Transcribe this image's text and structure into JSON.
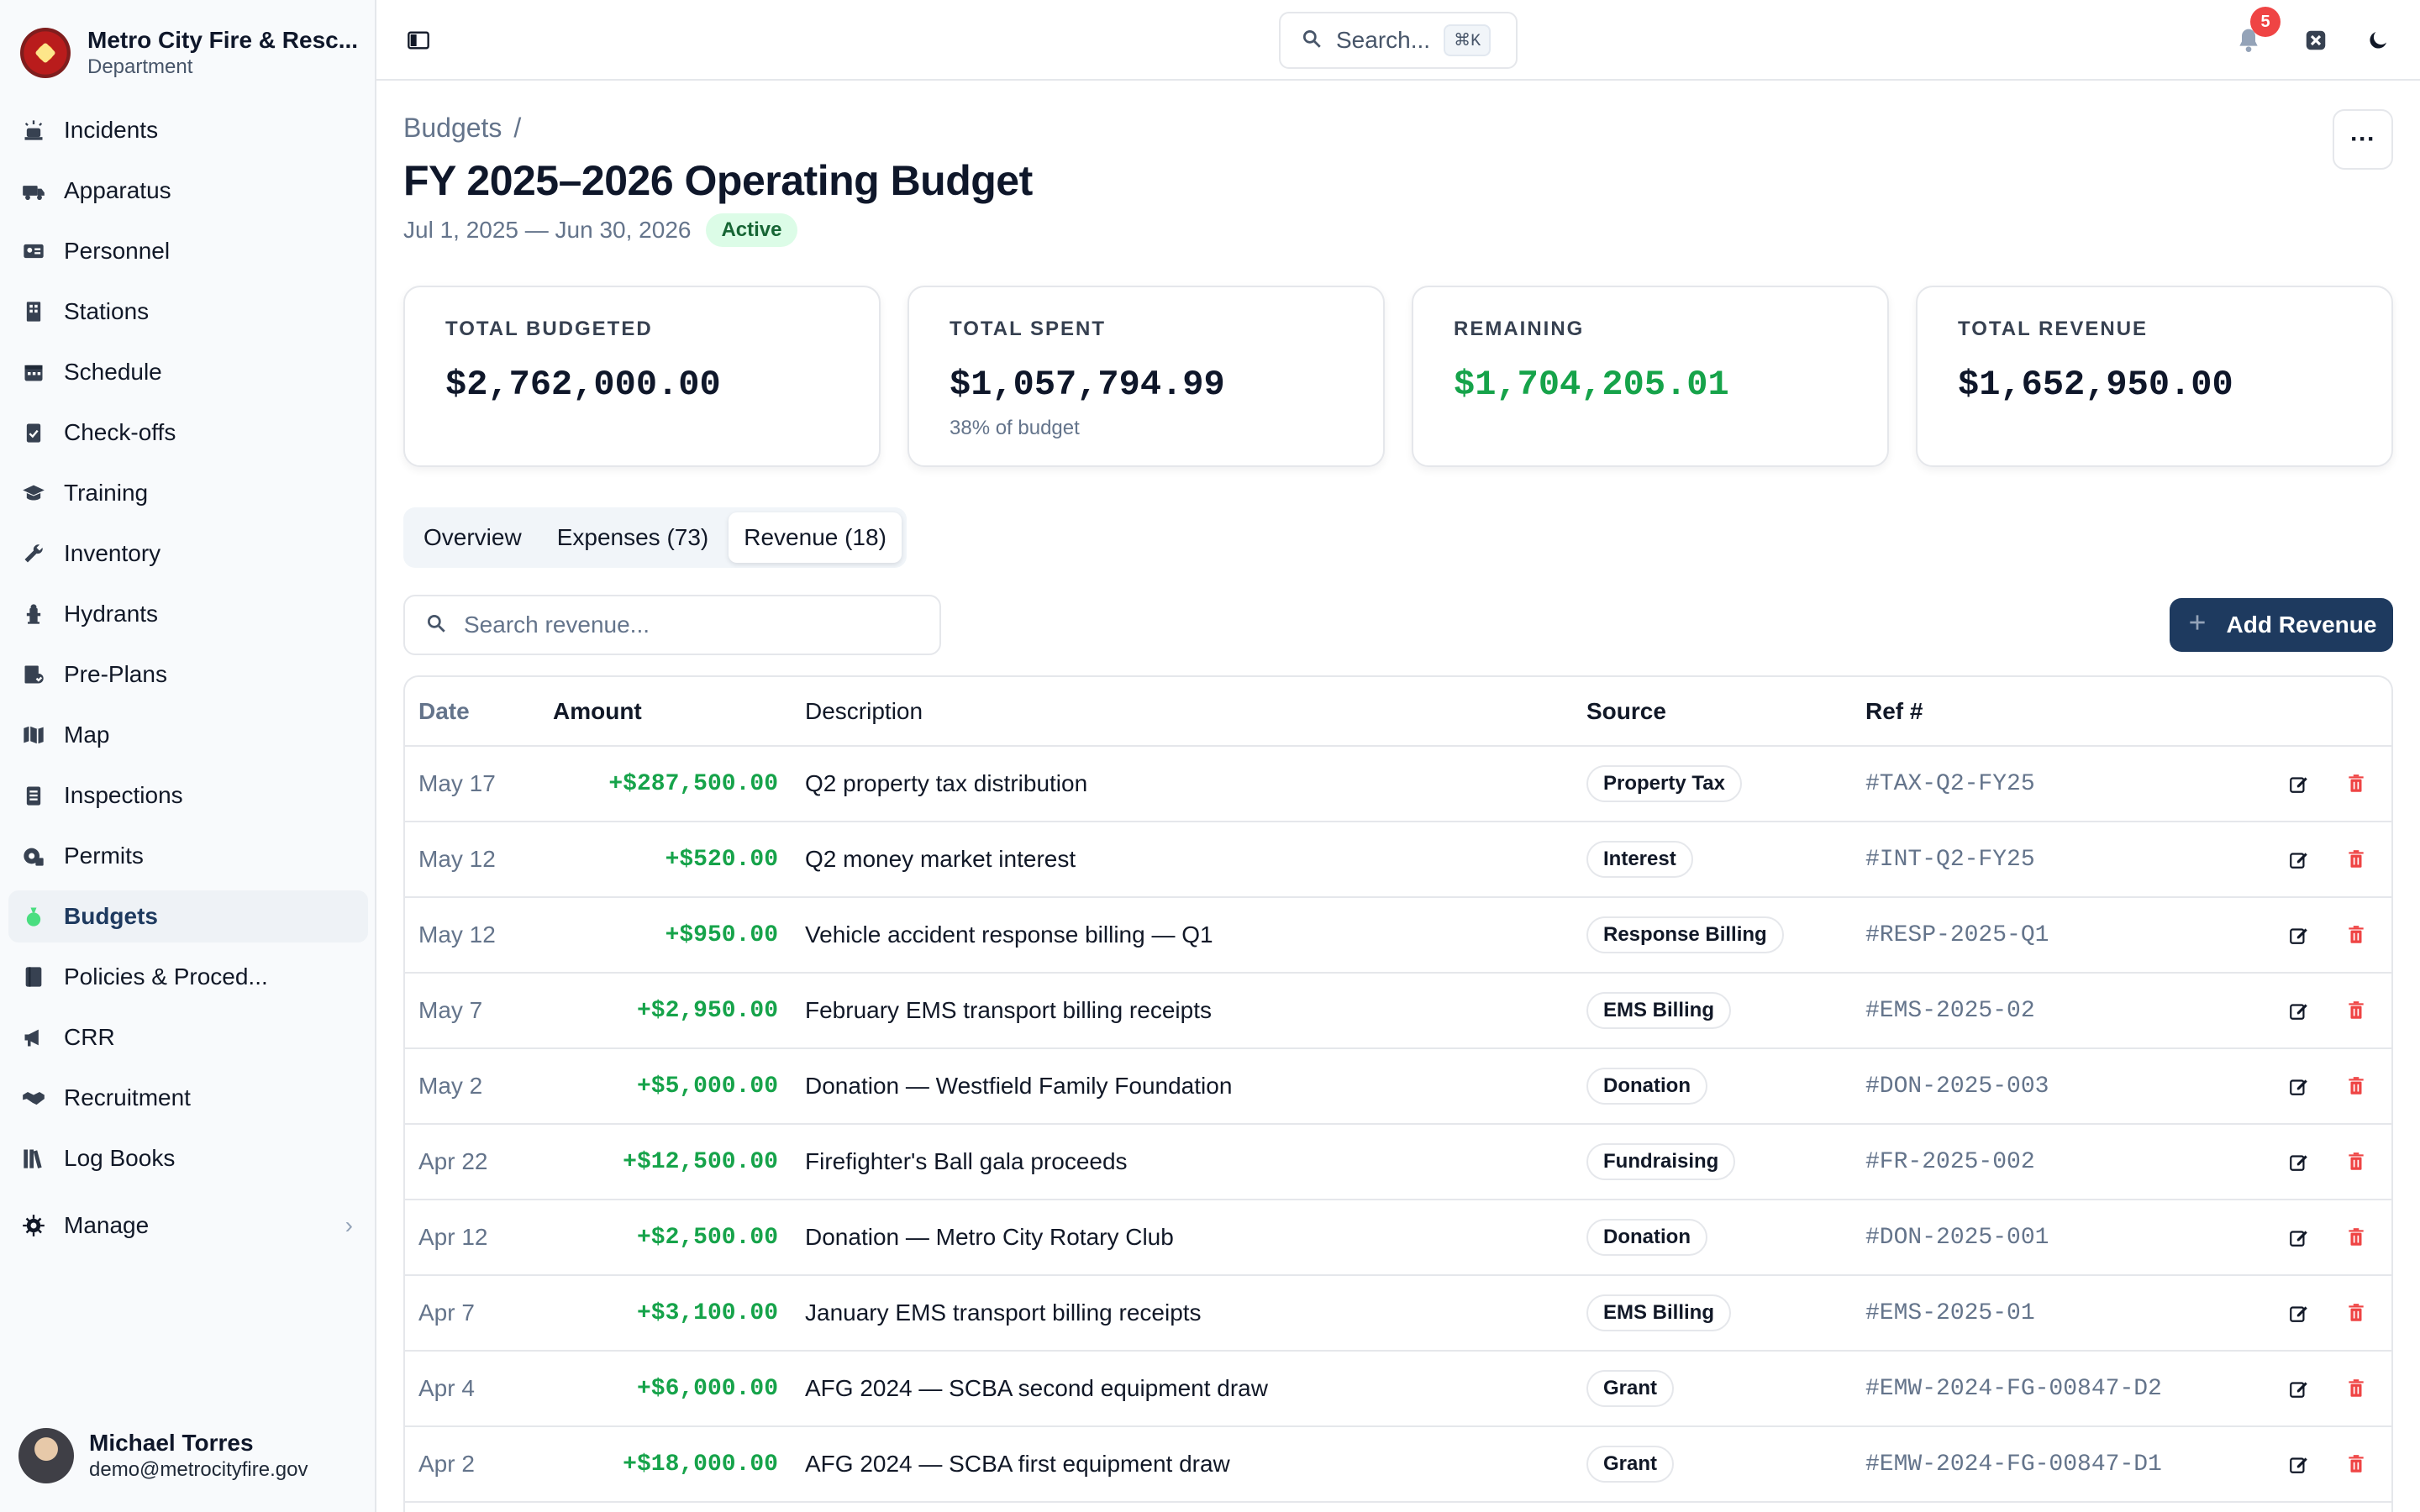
{
  "org": {
    "name": "Metro City Fire & Resc...",
    "subtitle": "Department"
  },
  "nav": [
    {
      "label": "Incidents",
      "icon": "siren-icon"
    },
    {
      "label": "Apparatus",
      "icon": "fire-truck-icon"
    },
    {
      "label": "Personnel",
      "icon": "id-card-icon"
    },
    {
      "label": "Stations",
      "icon": "building-icon"
    },
    {
      "label": "Schedule",
      "icon": "calendar-icon"
    },
    {
      "label": "Check-offs",
      "icon": "clipboard-check-icon"
    },
    {
      "label": "Training",
      "icon": "graduation-cap-icon"
    },
    {
      "label": "Inventory",
      "icon": "wrench-icon"
    },
    {
      "label": "Hydrants",
      "icon": "hydrant-icon"
    },
    {
      "label": "Pre-Plans",
      "icon": "plan-icon"
    },
    {
      "label": "Map",
      "icon": "map-icon"
    },
    {
      "label": "Inspections",
      "icon": "checklist-icon"
    },
    {
      "label": "Permits",
      "icon": "permit-icon"
    },
    {
      "label": "Budgets",
      "icon": "money-bag-icon",
      "active": true
    },
    {
      "label": "Policies & Proced...",
      "icon": "book-icon"
    },
    {
      "label": "CRR",
      "icon": "megaphone-icon"
    },
    {
      "label": "Recruitment",
      "icon": "handshake-icon"
    },
    {
      "label": "Log Books",
      "icon": "books-icon"
    }
  ],
  "manage": {
    "label": "Manage",
    "icon": "gear-icon"
  },
  "user": {
    "name": "Michael Torres",
    "email": "demo@metrocityfire.gov"
  },
  "topbar": {
    "search_label": "Search...",
    "shortcut": "⌘K",
    "notification_count": "5"
  },
  "breadcrumb": {
    "root": "Budgets",
    "separator": "/"
  },
  "budget": {
    "title": "FY 2025–2026 Operating Budget",
    "period": "Jul 1, 2025 — Jun 30, 2026",
    "status": "Active",
    "more_label": "···"
  },
  "summary": [
    {
      "label": "TOTAL BUDGETED",
      "value": "$2,762,000.00",
      "sub": ""
    },
    {
      "label": "TOTAL SPENT",
      "value": "$1,057,794.99",
      "sub": "38% of budget"
    },
    {
      "label": "REMAINING",
      "value": "$1,704,205.01",
      "sub": ""
    },
    {
      "label": "TOTAL REVENUE",
      "value": "$1,652,950.00",
      "sub": ""
    }
  ],
  "tabs": [
    {
      "label": "Overview"
    },
    {
      "label": "Expenses (73)"
    },
    {
      "label": "Revenue (18)",
      "active": true
    }
  ],
  "revenue_search": {
    "placeholder": "Search revenue..."
  },
  "add_button": {
    "label": "Add Revenue"
  },
  "colors": {
    "accent": "#1e3a5f",
    "positive": "#16a34a",
    "danger": "#ef4444",
    "active_badge_bg": "#dcfce7"
  },
  "table": {
    "headers": {
      "date": "Date",
      "amount": "Amount",
      "description": "Description",
      "source": "Source",
      "ref": "Ref #"
    },
    "rows": [
      {
        "date": "May 17",
        "amount": "+$287,500.00",
        "description": "Q2 property tax distribution",
        "source": "Property Tax",
        "ref": "#TAX-Q2-FY25"
      },
      {
        "date": "May 12",
        "amount": "+$520.00",
        "description": "Q2 money market interest",
        "source": "Interest",
        "ref": "#INT-Q2-FY25"
      },
      {
        "date": "May 12",
        "amount": "+$950.00",
        "description": "Vehicle accident response billing — Q1",
        "source": "Response Billing",
        "ref": "#RESP-2025-Q1"
      },
      {
        "date": "May 7",
        "amount": "+$2,950.00",
        "description": "February EMS transport billing receipts",
        "source": "EMS Billing",
        "ref": "#EMS-2025-02"
      },
      {
        "date": "May 2",
        "amount": "+$5,000.00",
        "description": "Donation — Westfield Family Foundation",
        "source": "Donation",
        "ref": "#DON-2025-003"
      },
      {
        "date": "Apr 22",
        "amount": "+$12,500.00",
        "description": "Firefighter's Ball gala proceeds",
        "source": "Fundraising",
        "ref": "#FR-2025-002"
      },
      {
        "date": "Apr 12",
        "amount": "+$2,500.00",
        "description": "Donation — Metro City Rotary Club",
        "source": "Donation",
        "ref": "#DON-2025-001"
      },
      {
        "date": "Apr 7",
        "amount": "+$3,100.00",
        "description": "January EMS transport billing receipts",
        "source": "EMS Billing",
        "ref": "#EMS-2025-01"
      },
      {
        "date": "Apr 4",
        "amount": "+$6,000.00",
        "description": "AFG 2024 — SCBA second equipment draw",
        "source": "Grant",
        "ref": "#EMW-2024-FG-00847-D2"
      },
      {
        "date": "Apr 2",
        "amount": "+$18,000.00",
        "description": "AFG 2024 — SCBA first equipment draw",
        "source": "Grant",
        "ref": "#EMW-2024-FG-00847-D1"
      }
    ]
  }
}
